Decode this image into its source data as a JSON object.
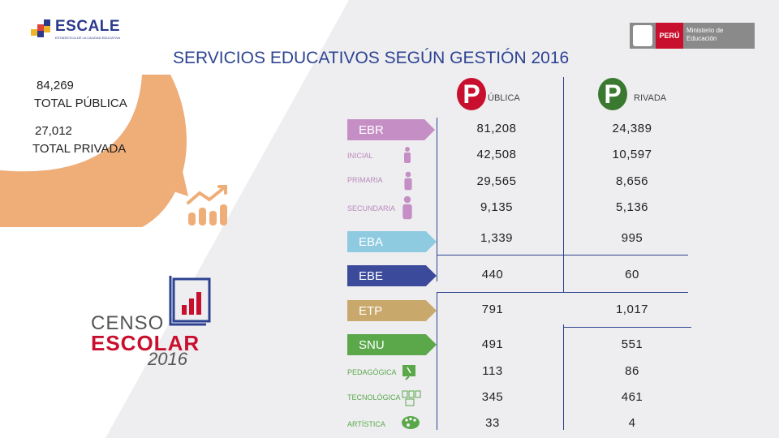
{
  "header": {
    "title": "SERVICIOS EDUCATIVOS SEGÚN GESTIÓN 2016",
    "logo_escale": "ESCALE",
    "logo_escale_sub": "ESTADÍSTICA DE LA CALIDAD EDUCATIVA",
    "logo_peru": "PERÚ",
    "logo_ministry": "Ministerio de Educación"
  },
  "totals": {
    "publica_value": "84,269",
    "publica_label": "TOTAL PÚBLICA",
    "privada_value": "27,012",
    "privada_label": "TOTAL PRIVADA"
  },
  "columns": {
    "publica_letter": "P",
    "publica_rest": "ÚBLICA",
    "privada_letter": "P",
    "privada_rest": "RIVADA"
  },
  "rows": [
    {
      "label": "EBR",
      "publica": "81,208",
      "privada": "24,389"
    },
    {
      "label": "INICIAL",
      "publica": "42,508",
      "privada": "10,597"
    },
    {
      "label": "PRIMARIA",
      "publica": "29,565",
      "privada": "8,656"
    },
    {
      "label": "SECUNDARIA",
      "publica": "9,135",
      "privada": "5,136"
    },
    {
      "label": "EBA",
      "publica": "1,339",
      "privada": "995"
    },
    {
      "label": "EBE",
      "publica": "440",
      "privada": "60"
    },
    {
      "label": "ETP",
      "publica": "791",
      "privada": "1,017"
    },
    {
      "label": "SNU",
      "publica": "491",
      "privada": "551"
    },
    {
      "label": "PEDAGÓGICA",
      "publica": "113",
      "privada": "86"
    },
    {
      "label": "TECNOLÓGICA",
      "publica": "345",
      "privada": "461"
    },
    {
      "label": "ARTÍSTICA",
      "publica": "33",
      "privada": "4"
    }
  ],
  "censo": {
    "line1": "CENSO",
    "line2": "ESCOLAR",
    "year": "2016"
  },
  "colors": {
    "ebr": "#c58fc6",
    "eba": "#8ecbe0",
    "ebe": "#3b4a9a",
    "etp": "#c9a86b",
    "snu": "#5aa84a",
    "publica": "#c8102e",
    "privada": "#3a7a30",
    "arc": "#efad78"
  }
}
